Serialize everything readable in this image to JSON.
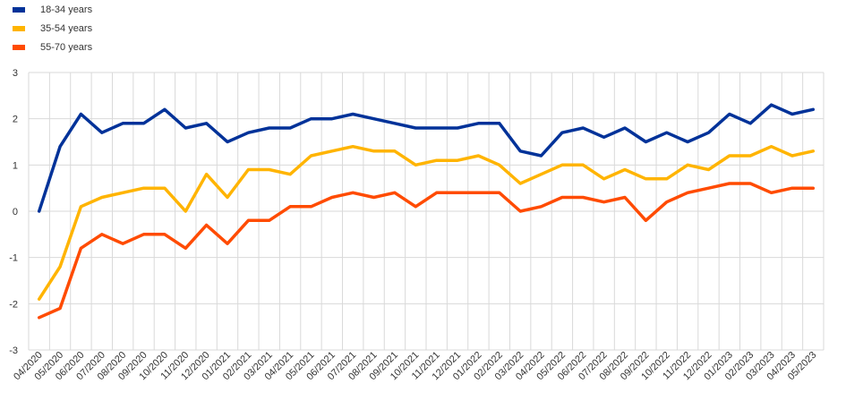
{
  "chart_data": {
    "type": "line",
    "title": "",
    "xlabel": "",
    "ylabel": "",
    "ylim": [
      -3,
      3
    ],
    "yticks": [
      "3",
      "2",
      "1",
      "0",
      "-1",
      "-2",
      "-3"
    ],
    "grid": true,
    "legend_position": "top-left",
    "categories": [
      "04/2020",
      "05/2020",
      "06/2020",
      "07/2020",
      "08/2020",
      "09/2020",
      "10/2020",
      "11/2020",
      "12/2020",
      "01/2021",
      "02/2021",
      "03/2021",
      "04/2021",
      "05/2021",
      "06/2021",
      "07/2021",
      "08/2021",
      "09/2021",
      "10/2021",
      "11/2021",
      "12/2021",
      "01/2022",
      "02/2022",
      "03/2022",
      "04/2022",
      "05/2022",
      "06/2022",
      "07/2022",
      "08/2022",
      "09/2022",
      "10/2022",
      "11/2022",
      "12/2022",
      "01/2023",
      "02/2023",
      "03/2023",
      "04/2023",
      "05/2023"
    ],
    "series": [
      {
        "name": "18-34 years",
        "color": "#003299",
        "values": [
          0,
          1.4,
          2.1,
          1.7,
          1.9,
          1.9,
          2.2,
          1.8,
          1.9,
          1.5,
          1.7,
          1.8,
          1.8,
          2.0,
          2.0,
          2.1,
          2.0,
          1.9,
          1.8,
          1.8,
          1.8,
          1.9,
          1.9,
          1.3,
          1.2,
          1.7,
          1.8,
          1.6,
          1.8,
          1.5,
          1.7,
          1.5,
          1.7,
          2.1,
          1.9,
          2.3,
          2.1,
          2.2
        ]
      },
      {
        "name": "35-54 years",
        "color": "#FFB400",
        "values": [
          -1.9,
          -1.2,
          0.1,
          0.3,
          0.4,
          0.5,
          0.5,
          0,
          0.8,
          0.3,
          0.9,
          0.9,
          0.8,
          1.2,
          1.3,
          1.4,
          1.3,
          1.3,
          1.0,
          1.1,
          1.1,
          1.2,
          1.0,
          0.6,
          0.8,
          1.0,
          1.0,
          0.7,
          0.9,
          0.7,
          0.7,
          1.0,
          0.9,
          1.2,
          1.2,
          1.4,
          1.2,
          1.3
        ]
      },
      {
        "name": "55-70 years",
        "color": "#FF4B00",
        "values": [
          -2.3,
          -2.1,
          -0.8,
          -0.5,
          -0.7,
          -0.5,
          -0.5,
          -0.8,
          -0.3,
          -0.7,
          -0.2,
          -0.2,
          0.1,
          0.1,
          0.3,
          0.4,
          0.3,
          0.4,
          0.1,
          0.4,
          0.4,
          0.4,
          0.4,
          0,
          0.1,
          0.3,
          0.3,
          0.2,
          0.3,
          -0.2,
          0.2,
          0.4,
          0.5,
          0.6,
          0.6,
          0.4,
          0.5,
          0.5
        ]
      }
    ]
  }
}
